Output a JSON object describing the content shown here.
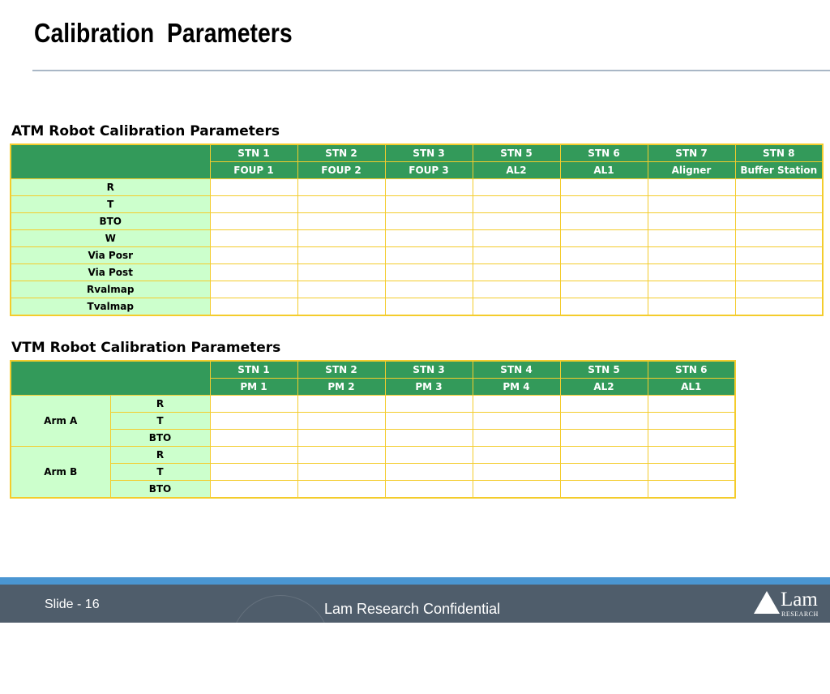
{
  "slide": {
    "title": "Calibration  Parameters",
    "footer_slide": "Slide - 16",
    "footer_confidential": "Lam Research Confidential",
    "logo_word": "Lam",
    "logo_sub": "RESEARCH"
  },
  "atm": {
    "caption": "ATM Robot Calibration Parameters",
    "columns": [
      {
        "stn": "STN 1",
        "name": "FOUP 1"
      },
      {
        "stn": "STN 2",
        "name": "FOUP 2"
      },
      {
        "stn": "STN 3",
        "name": "FOUP 3"
      },
      {
        "stn": "STN 5",
        "name": "AL2"
      },
      {
        "stn": "STN 6",
        "name": "AL1"
      },
      {
        "stn": "STN 7",
        "name": "Aligner"
      },
      {
        "stn": "STN 8",
        "name": "Buffer Station"
      }
    ],
    "rows": [
      "R",
      "T",
      "BTO",
      "W",
      "Via Posr",
      "Via Post",
      "Rvalmap",
      "Tvalmap"
    ]
  },
  "vtm": {
    "caption": "VTM Robot Calibration Parameters",
    "columns": [
      {
        "stn": "STN 1",
        "name": "PM 1"
      },
      {
        "stn": "STN 2",
        "name": "PM 2"
      },
      {
        "stn": "STN 3",
        "name": "PM 3"
      },
      {
        "stn": "STN 4",
        "name": "PM 4"
      },
      {
        "stn": "STN 5",
        "name": "AL2"
      },
      {
        "stn": "STN 6",
        "name": "AL1"
      }
    ],
    "arms": [
      {
        "name": "Arm A",
        "params": [
          "R",
          "T",
          "BTO"
        ]
      },
      {
        "name": "Arm B",
        "params": [
          "R",
          "T",
          "BTO"
        ]
      }
    ]
  },
  "colors": {
    "header_green": "#339a5a",
    "label_green": "#ccffcc",
    "grid_yellow": "#f4cc2c",
    "footer_bg": "#4f5d6b",
    "footer_stripe": "#4a96d2"
  }
}
